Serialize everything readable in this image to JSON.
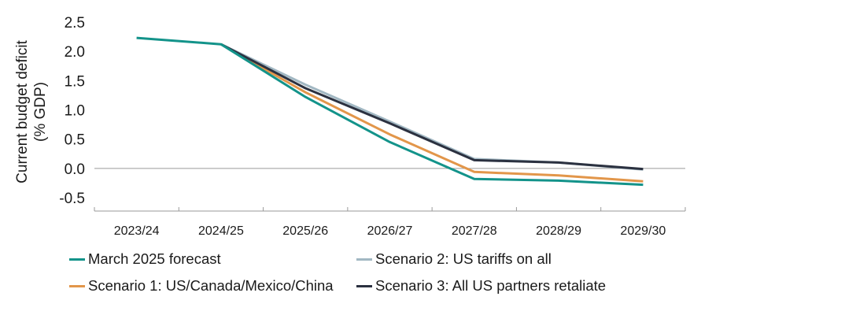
{
  "chart_data": {
    "type": "line",
    "ylabel": [
      "Current budget deficit",
      "(% GDP)"
    ],
    "categories": [
      "2023/24",
      "2024/25",
      "2025/26",
      "2026/27",
      "2027/28",
      "2028/29",
      "2029/30"
    ],
    "ylim": [
      -0.5,
      2.5
    ],
    "yticks": [
      "2.5",
      "2.0",
      "1.5",
      "1.0",
      "0.5",
      "0.0",
      "-0.5"
    ],
    "ytick_values": [
      2.5,
      2.0,
      1.5,
      1.0,
      0.5,
      0.0,
      -0.5
    ],
    "grid": false,
    "legend_position": "bottom",
    "series": [
      {
        "name": "March 2025 forecast",
        "color": "#13938a",
        "values": [
          2.23,
          2.12,
          1.22,
          0.45,
          -0.18,
          -0.21,
          -0.28
        ]
      },
      {
        "name": "Scenario 1: US/Canada/Mexico/China",
        "color": "#e2964a",
        "values": [
          null,
          2.12,
          1.3,
          0.58,
          -0.06,
          -0.12,
          -0.22
        ]
      },
      {
        "name": "Scenario 2: US tariffs on all",
        "color": "#a2b8c3",
        "values": [
          null,
          2.12,
          1.43,
          0.8,
          0.16,
          0.1,
          -0.02
        ]
      },
      {
        "name": "Scenario 3: All US partners retaliate",
        "color": "#2b3140",
        "values": [
          null,
          2.12,
          1.37,
          0.77,
          0.14,
          0.1,
          -0.01
        ]
      }
    ]
  }
}
